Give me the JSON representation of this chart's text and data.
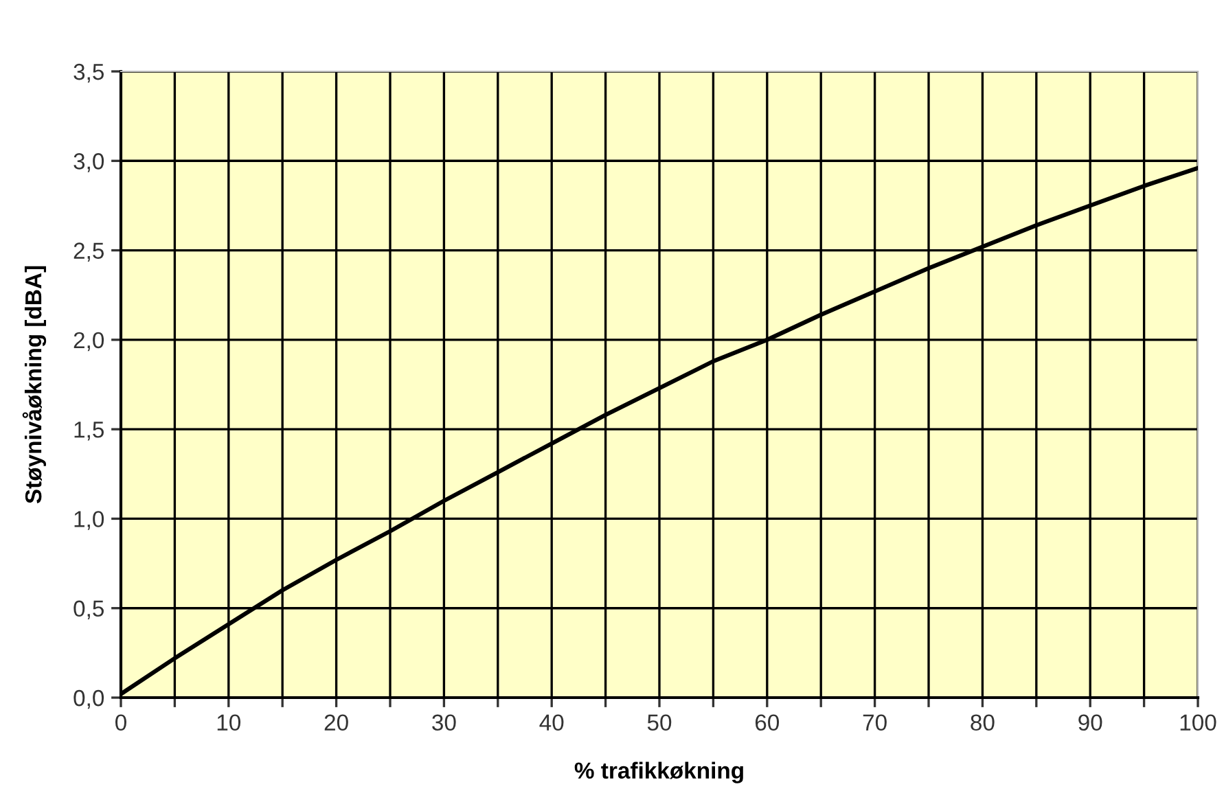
{
  "chart_data": {
    "type": "line",
    "xlabel": "% trafikkøkning",
    "ylabel": "Støynivåøkning [dBA]",
    "x": [
      0,
      5,
      10,
      15,
      20,
      25,
      30,
      35,
      40,
      45,
      50,
      55,
      60,
      65,
      70,
      75,
      80,
      85,
      90,
      95,
      100
    ],
    "series": [
      {
        "color": "#000000",
        "values": [
          0.02,
          0.22,
          0.41,
          0.6,
          0.77,
          0.93,
          1.1,
          1.26,
          1.42,
          1.58,
          1.73,
          1.88,
          2.0,
          2.14,
          2.27,
          2.4,
          2.52,
          2.64,
          2.75,
          2.86,
          2.96
        ]
      }
    ],
    "xlim": [
      0,
      100
    ],
    "xticks": [
      0,
      {
        "value": 5,
        "label": null
      },
      10,
      {
        "value": 15,
        "label": null
      },
      20,
      {
        "value": 25,
        "label": null
      },
      30,
      {
        "value": 35,
        "label": null
      },
      40,
      {
        "value": 45,
        "label": null
      },
      50,
      {
        "value": 55,
        "label": null
      },
      60,
      {
        "value": 65,
        "label": null
      },
      70,
      {
        "value": 75,
        "label": null
      },
      80,
      {
        "value": 85,
        "label": null
      },
      90,
      {
        "value": 95,
        "label": null
      },
      100
    ],
    "ylim": [
      0,
      3.5
    ],
    "yticks": [
      {
        "value": 0,
        "label": "0,0"
      },
      {
        "value": 0.5,
        "label": "0,5"
      },
      {
        "value": 1,
        "label": "1,0"
      },
      {
        "value": 1.5,
        "label": "1,5"
      },
      {
        "value": 2,
        "label": "2,0"
      },
      {
        "value": 2.5,
        "label": "2,5"
      },
      {
        "value": 3,
        "label": "3,0"
      },
      {
        "value": 3.5,
        "label": "3,5"
      }
    ],
    "grid": true,
    "marker": "none",
    "line_style": "solid"
  }
}
